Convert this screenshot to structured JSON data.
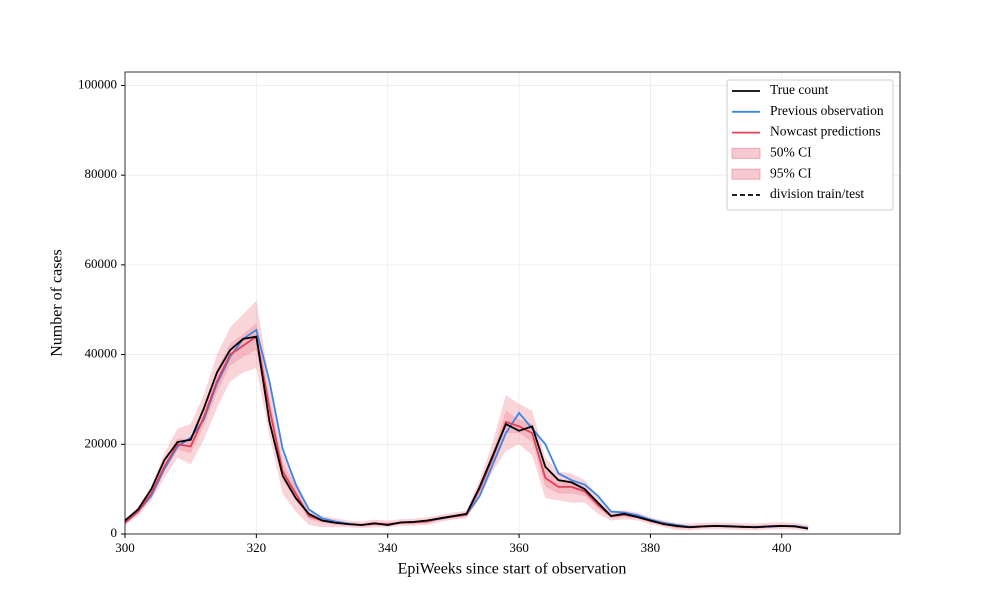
{
  "chart_data": {
    "type": "line",
    "xlabel": "EpiWeeks since start of observation",
    "ylabel": "Number of cases",
    "x": [
      300,
      302,
      304,
      306,
      308,
      310,
      312,
      314,
      316,
      318,
      320,
      322,
      324,
      326,
      328,
      330,
      332,
      334,
      336,
      338,
      340,
      342,
      344,
      346,
      348,
      350,
      352,
      354,
      356,
      358,
      360,
      362,
      364,
      366,
      368,
      370,
      372,
      374,
      376,
      378,
      380,
      382,
      384,
      386,
      388,
      390,
      392,
      394,
      396,
      398,
      400,
      402,
      404
    ],
    "series": [
      {
        "name": "True count",
        "color": "#000000",
        "values": [
          3000,
          5500,
          10000,
          16500,
          20500,
          21000,
          28000,
          36000,
          41000,
          43500,
          44000,
          25000,
          13000,
          8000,
          4500,
          3000,
          2500,
          2200,
          2000,
          2400,
          2000,
          2600,
          2700,
          3000,
          3500,
          4000,
          4500,
          10500,
          17500,
          24500,
          23000,
          24000,
          15000,
          12000,
          11500,
          10000,
          7000,
          4000,
          4500,
          3800,
          3000,
          2200,
          1800,
          1500,
          1700,
          1800,
          1700,
          1600,
          1500,
          1700,
          1800,
          1700,
          1200
        ]
      },
      {
        "name": "Previous observation",
        "color": "#3a86e8",
        "values": [
          2500,
          5000,
          8500,
          14500,
          19500,
          21500,
          25500,
          33500,
          39500,
          43500,
          45500,
          34000,
          19000,
          11000,
          5500,
          3500,
          2800,
          2300,
          2000,
          2300,
          2100,
          2500,
          2700,
          2900,
          3400,
          3900,
          4300,
          8500,
          15500,
          22500,
          27000,
          23500,
          20000,
          13500,
          12000,
          11000,
          8500,
          5000,
          4800,
          4200,
          3200,
          2500,
          2000,
          1600,
          1700,
          1800,
          1800,
          1600,
          1600,
          1600,
          1800,
          1800,
          1400
        ]
      },
      {
        "name": "Nowcast predictions",
        "color": "#e0405a",
        "values": [
          2500,
          5000,
          9000,
          15000,
          20000,
          19500,
          26000,
          34000,
          40000,
          42000,
          44000,
          28000,
          14000,
          9000,
          4000,
          3000,
          2500,
          2200,
          2000,
          2300,
          2200,
          2500,
          2600,
          2800,
          3500,
          3900,
          4300,
          10000,
          17000,
          25000,
          24000,
          22500,
          12500,
          10500,
          10500,
          9500,
          6500,
          4000,
          4300,
          3800,
          2900,
          2300,
          1700,
          1500,
          1700,
          1800,
          1700,
          1600,
          1500,
          1700,
          1800,
          1700,
          1300
        ]
      }
    ],
    "bands": [
      {
        "name": "50% CI",
        "color": "#e8687a",
        "low": [
          2300,
          4600,
          8300,
          14000,
          18800,
          18000,
          24000,
          31500,
          37500,
          39500,
          41000,
          25500,
          12000,
          7500,
          3300,
          2500,
          2100,
          1900,
          1700,
          1900,
          1900,
          2200,
          2300,
          2400,
          3100,
          3600,
          3900,
          9200,
          15800,
          22500,
          22500,
          20500,
          10500,
          9000,
          9000,
          8500,
          5700,
          3500,
          3800,
          3400,
          2600,
          1900,
          1300,
          1200,
          1400,
          1500,
          1400,
          1300,
          1200,
          1400,
          1500,
          1400,
          1000
        ],
        "high": [
          2700,
          5400,
          9700,
          16200,
          21300,
          21200,
          28000,
          36500,
          42500,
          44500,
          47000,
          30500,
          16000,
          10500,
          4700,
          3500,
          2900,
          2500,
          2300,
          2700,
          2500,
          2800,
          2900,
          3200,
          3900,
          4200,
          4700,
          10800,
          18300,
          27500,
          25500,
          24500,
          14500,
          12000,
          12000,
          10500,
          7300,
          4500,
          4800,
          4200,
          3200,
          2700,
          2100,
          1800,
          2000,
          2100,
          2000,
          1900,
          1800,
          2000,
          2100,
          2000,
          1600
        ]
      },
      {
        "name": "95% CI",
        "color": "#e8687a",
        "low": [
          2000,
          4000,
          7500,
          12500,
          17000,
          15500,
          21000,
          28000,
          34000,
          36000,
          37000,
          22000,
          9000,
          5000,
          2000,
          1500,
          1500,
          1500,
          1300,
          1500,
          1500,
          1800,
          1900,
          2000,
          2700,
          3200,
          3500,
          8000,
          14000,
          18500,
          20000,
          17500,
          8000,
          7500,
          7000,
          7000,
          4500,
          3000,
          3300,
          3000,
          2200,
          1500,
          900,
          800,
          1000,
          1100,
          1000,
          900,
          800,
          1000,
          1100,
          1000,
          600
        ],
        "high": [
          3000,
          6000,
          10500,
          18000,
          23500,
          24500,
          31000,
          40000,
          46000,
          49000,
          52000,
          34000,
          18000,
          12000,
          5500,
          4000,
          3500,
          3000,
          2800,
          3200,
          3000,
          3300,
          3400,
          3700,
          4300,
          4800,
          5200,
          12000,
          20500,
          31000,
          29000,
          27500,
          17000,
          14000,
          13500,
          12000,
          8500,
          5000,
          5300,
          4800,
          3700,
          3000,
          2400,
          2300,
          2500,
          2600,
          2500,
          2400,
          2300,
          2500,
          2600,
          2500,
          2000
        ]
      }
    ],
    "divider": {
      "name": "division train/test",
      "color": "#000000"
    },
    "xlim": [
      300,
      418
    ],
    "xticks": [
      300,
      320,
      340,
      360,
      380,
      400
    ],
    "ylim": [
      0,
      103000
    ],
    "yticks": [
      0,
      20000,
      40000,
      60000,
      80000,
      100000
    ],
    "grid": true,
    "legend": "upper right"
  }
}
